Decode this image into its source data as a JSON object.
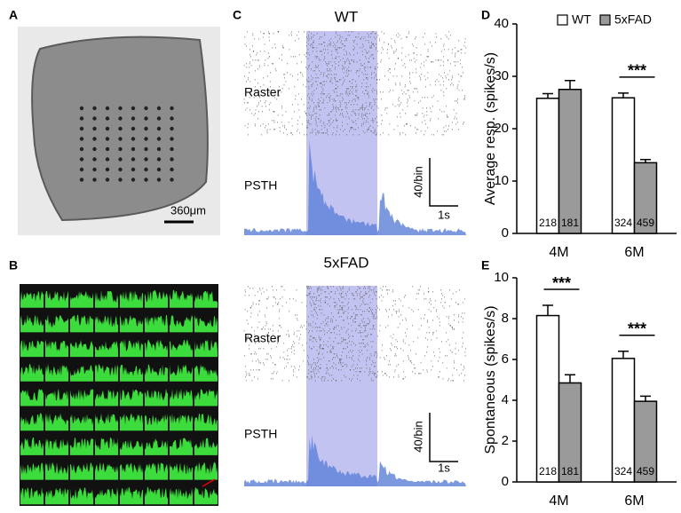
{
  "panels": {
    "A": {
      "label": "A",
      "scale_bar": "360μm"
    },
    "B": {
      "label": "B"
    },
    "C": {
      "label": "C",
      "wt": {
        "title": "WT",
        "raster": "Raster",
        "psth": "PSTH",
        "y_scale": "40/bin",
        "x_scale": "1s"
      },
      "fad": {
        "title": "5xFAD",
        "raster": "Raster",
        "psth": "PSTH",
        "y_scale": "40/bin",
        "x_scale": "1s"
      }
    }
  },
  "chart_data": [
    {
      "type": "bar",
      "panel_label": "D",
      "ylabel": "Average resp. (spikes/s)",
      "categories": [
        "4M",
        "6M"
      ],
      "series": [
        {
          "name": "WT",
          "color": "#ffffff",
          "values": [
            25.8,
            25.9
          ],
          "errors": [
            0.9,
            0.9
          ],
          "n": [
            218,
            324
          ]
        },
        {
          "name": "5xFAD",
          "color": "#9a9a9a",
          "values": [
            27.5,
            13.5
          ],
          "errors": [
            1.7,
            0.6
          ],
          "n": [
            181,
            459
          ]
        }
      ],
      "significance": [
        null,
        "***"
      ],
      "ylim": [
        0,
        40
      ],
      "yticks": [
        0,
        10,
        20,
        30,
        40
      ],
      "legend": "top"
    },
    {
      "type": "bar",
      "panel_label": "E",
      "ylabel": "Spontaneous (spikes/s)",
      "categories": [
        "4M",
        "6M"
      ],
      "series": [
        {
          "name": "WT",
          "color": "#ffffff",
          "values": [
            8.15,
            6.05
          ],
          "errors": [
            0.5,
            0.35
          ],
          "n": [
            218,
            324
          ]
        },
        {
          "name": "5xFAD",
          "color": "#9a9a9a",
          "values": [
            4.85,
            3.95
          ],
          "errors": [
            0.4,
            0.25
          ],
          "n": [
            181,
            459
          ]
        }
      ],
      "significance": [
        "***",
        "***"
      ],
      "ylim": [
        0,
        10
      ],
      "yticks": [
        0,
        2,
        4,
        6,
        8,
        10
      ]
    }
  ]
}
